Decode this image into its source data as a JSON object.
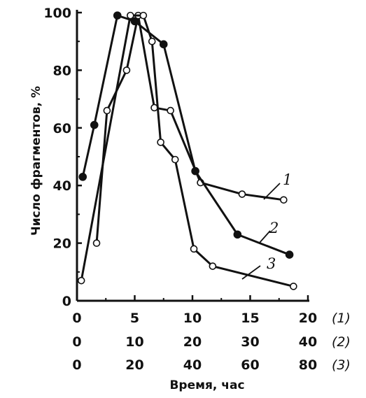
{
  "chart_data": {
    "type": "line",
    "title": "",
    "ylabel": "Число фрагментов, %",
    "xlabel": "Время, час",
    "ylim": [
      0,
      100
    ],
    "yticks": [
      "0",
      "20",
      "40",
      "60",
      "80",
      "100"
    ],
    "x_scales": [
      {
        "tag": "(1)",
        "ticks": [
          "0",
          "5",
          "10",
          "15",
          "20"
        ],
        "max": 20
      },
      {
        "tag": "(2)",
        "ticks": [
          "0",
          "10",
          "20",
          "30",
          "40"
        ],
        "max": 40
      },
      {
        "tag": "(3)",
        "ticks": [
          "0",
          "20",
          "40",
          "60",
          "80"
        ],
        "max": 80
      }
    ],
    "series": [
      {
        "name": "1",
        "scale": 0,
        "marker": "open",
        "x": [
          1.7,
          2.6,
          4.3,
          5.3,
          6.7,
          8.1,
          10.7,
          14.3,
          17.9
        ],
        "y": [
          20,
          66,
          80,
          99,
          67,
          66,
          41,
          37,
          35
        ]
      },
      {
        "name": "2",
        "scale": 1,
        "marker": "filled",
        "x": [
          1.0,
          3.0,
          7.0,
          10.0,
          15.0,
          20.5,
          27.8,
          36.8
        ],
        "y": [
          43,
          61,
          99,
          97,
          89,
          45,
          23,
          16
        ]
      },
      {
        "name": "3",
        "scale": 2,
        "marker": "open",
        "x": [
          1.5,
          18.5,
          23.0,
          26.0,
          29.0,
          34.0,
          40.5,
          47.0,
          75.0
        ],
        "y": [
          7,
          99,
          99,
          90,
          55,
          49,
          18,
          12,
          5
        ]
      }
    ]
  }
}
